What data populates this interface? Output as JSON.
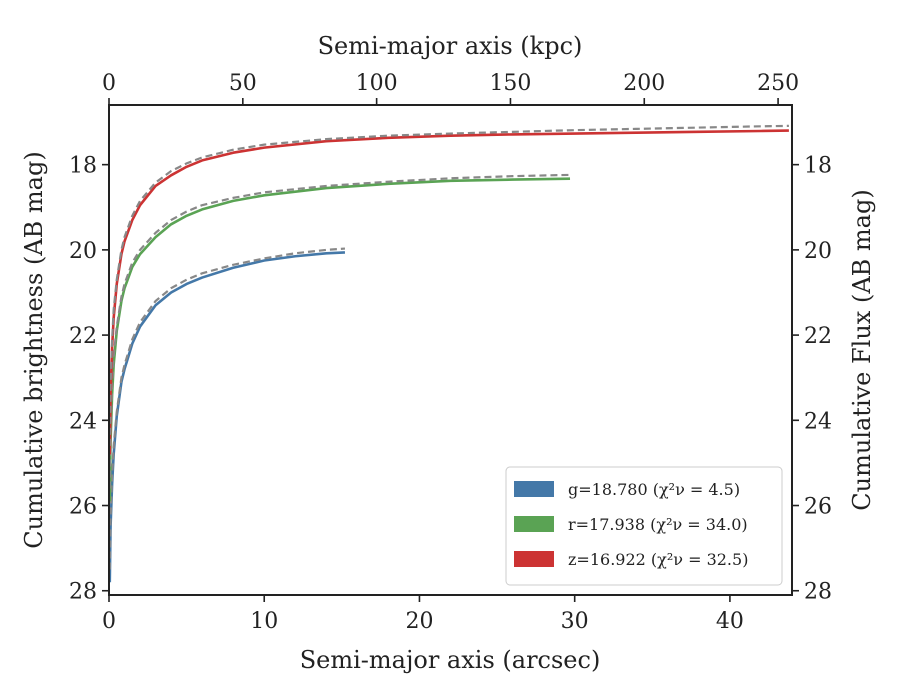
{
  "chart_data": {
    "type": "line",
    "xlabel": "Semi-major axis (arcsec)",
    "x2label": "Semi-major axis (kpc)",
    "ylabel": "Cumulative brightness (AB mag)",
    "y2label": "Cumulative Flux (AB mag)",
    "xlim": [
      0,
      44
    ],
    "x2lim": [
      0,
      255.2
    ],
    "ylim": [
      28.1,
      16.6
    ],
    "y_inverted": true,
    "xticks": [
      0,
      10,
      20,
      30,
      40
    ],
    "x2ticks": [
      0,
      50,
      100,
      150,
      200,
      250
    ],
    "yticks": [
      18,
      20,
      22,
      24,
      26,
      28
    ],
    "grid": false,
    "legend_position": "bottom-right",
    "series": [
      {
        "name": "g=18.780 (χ²ν = 4.5)",
        "band": "g",
        "color": "#4478a8",
        "x": [
          0.05,
          0.1,
          0.2,
          0.3,
          0.5,
          0.8,
          1.0,
          1.5,
          2.0,
          3.0,
          4.0,
          5.0,
          6.0,
          8.0,
          10.0,
          12.0,
          14.0,
          15.2
        ],
        "y": [
          27.8,
          26.5,
          25.5,
          24.8,
          23.9,
          23.1,
          22.8,
          22.2,
          21.8,
          21.3,
          21.0,
          20.8,
          20.65,
          20.42,
          20.25,
          20.15,
          20.08,
          20.06
        ],
        "model_x": [
          0.05,
          0.1,
          0.2,
          0.3,
          0.5,
          0.8,
          1.0,
          1.5,
          2.0,
          3.0,
          4.0,
          5.0,
          6.0,
          8.0,
          10.0,
          12.0,
          14.0,
          15.2
        ],
        "model_y": [
          27.5,
          26.3,
          25.3,
          24.6,
          23.8,
          23.0,
          22.7,
          22.1,
          21.7,
          21.2,
          20.9,
          20.7,
          20.55,
          20.35,
          20.2,
          20.08,
          20.0,
          19.97
        ]
      },
      {
        "name": "r=17.938 (χ²ν = 34.0)",
        "band": "r",
        "color": "#5aa354",
        "x": [
          0.05,
          0.1,
          0.2,
          0.3,
          0.5,
          0.8,
          1.0,
          1.5,
          2.0,
          3.0,
          4.0,
          5.0,
          6.0,
          8.0,
          10.0,
          14.0,
          18.0,
          22.0,
          26.0,
          29.7
        ],
        "y": [
          25.9,
          24.5,
          23.4,
          22.7,
          21.9,
          21.2,
          20.9,
          20.4,
          20.1,
          19.7,
          19.4,
          19.2,
          19.05,
          18.85,
          18.72,
          18.55,
          18.45,
          18.38,
          18.35,
          18.33
        ],
        "model_x": [
          0.05,
          0.1,
          0.2,
          0.3,
          0.5,
          0.8,
          1.0,
          1.5,
          2.0,
          3.0,
          4.0,
          5.0,
          6.0,
          8.0,
          10.0,
          14.0,
          18.0,
          22.0,
          26.0,
          29.7
        ],
        "model_y": [
          25.6,
          24.3,
          23.2,
          22.5,
          21.8,
          21.1,
          20.8,
          20.3,
          20.0,
          19.6,
          19.3,
          19.1,
          18.95,
          18.78,
          18.65,
          18.5,
          18.4,
          18.32,
          18.27,
          18.24
        ]
      },
      {
        "name": "z=16.922 (χ²ν = 32.5)",
        "band": "z",
        "color": "#cc3333",
        "x": [
          0.05,
          0.1,
          0.2,
          0.3,
          0.5,
          0.8,
          1.0,
          1.5,
          2.0,
          3.0,
          4.0,
          5.0,
          6.0,
          8.0,
          10.0,
          14.0,
          18.0,
          22.0,
          26.0,
          30.0,
          34.0,
          38.0,
          42.0,
          43.8
        ],
        "y": [
          24.8,
          23.4,
          22.3,
          21.6,
          20.8,
          20.1,
          19.8,
          19.3,
          18.95,
          18.5,
          18.25,
          18.05,
          17.9,
          17.72,
          17.6,
          17.45,
          17.37,
          17.32,
          17.29,
          17.27,
          17.25,
          17.23,
          17.21,
          17.2
        ],
        "model_x": [
          0.05,
          0.1,
          0.2,
          0.3,
          0.5,
          0.8,
          1.0,
          1.5,
          2.0,
          3.0,
          4.0,
          5.0,
          6.0,
          8.0,
          10.0,
          14.0,
          18.0,
          22.0,
          26.0,
          30.0,
          34.0,
          38.0,
          42.0,
          43.8
        ],
        "model_y": [
          24.6,
          23.2,
          22.1,
          21.4,
          20.7,
          20.0,
          19.7,
          19.2,
          18.85,
          18.42,
          18.15,
          17.97,
          17.83,
          17.65,
          17.53,
          17.4,
          17.32,
          17.27,
          17.23,
          17.19,
          17.16,
          17.13,
          17.1,
          17.09
        ]
      }
    ],
    "model_line_style": "dashed",
    "model_line_color": "#888888"
  }
}
